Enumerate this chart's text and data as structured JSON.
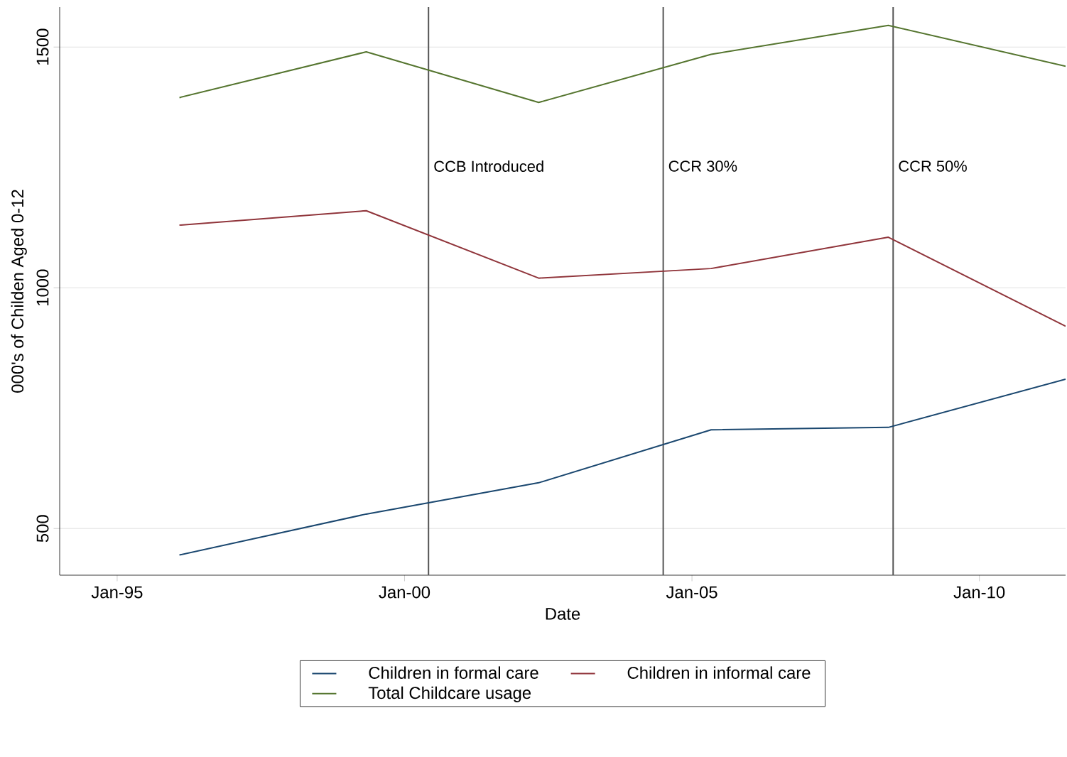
{
  "chart_data": {
    "type": "line",
    "xlabel": "Date",
    "ylabel": "000's of Childen Aged 0-12",
    "x": [
      "1996-02",
      "1999-05",
      "2002-05",
      "2005-05",
      "2008-06",
      "2011-07"
    ],
    "series": [
      {
        "name": "Children in formal care",
        "color": "#1a476f",
        "values": [
          445,
          530,
          595,
          705,
          710,
          810
        ]
      },
      {
        "name": "Children in informal care",
        "color": "#90353b",
        "values": [
          1130,
          1160,
          1020,
          1040,
          1105,
          920
        ]
      },
      {
        "name": "Total Childcare usage",
        "color": "#55752f",
        "values": [
          1395,
          1490,
          1385,
          1485,
          1545,
          1460
        ]
      }
    ],
    "xlim": [
      "1994-01",
      "2011-07"
    ],
    "xticks": [
      {
        "value": "1995-01",
        "label": "Jan-95"
      },
      {
        "value": "2000-01",
        "label": "Jan-00"
      },
      {
        "value": "2005-01",
        "label": "Jan-05"
      },
      {
        "value": "2010-01",
        "label": "Jan-10"
      }
    ],
    "ylim": [
      403,
      1583
    ],
    "yticks": [
      500,
      1000,
      1500
    ],
    "ref_lines": [
      {
        "axis": "x",
        "value": "2000-06",
        "label": "CCB Introduced",
        "color": "#555555"
      },
      {
        "axis": "x",
        "value": "2004-07",
        "label": "CCR 30%",
        "color": "#555555"
      },
      {
        "axis": "x",
        "value": "2008-07",
        "label": "CCR 50%",
        "color": "#555555"
      }
    ],
    "grid": "y",
    "legend": "bottom",
    "marker": "none",
    "line_style": "solid"
  }
}
